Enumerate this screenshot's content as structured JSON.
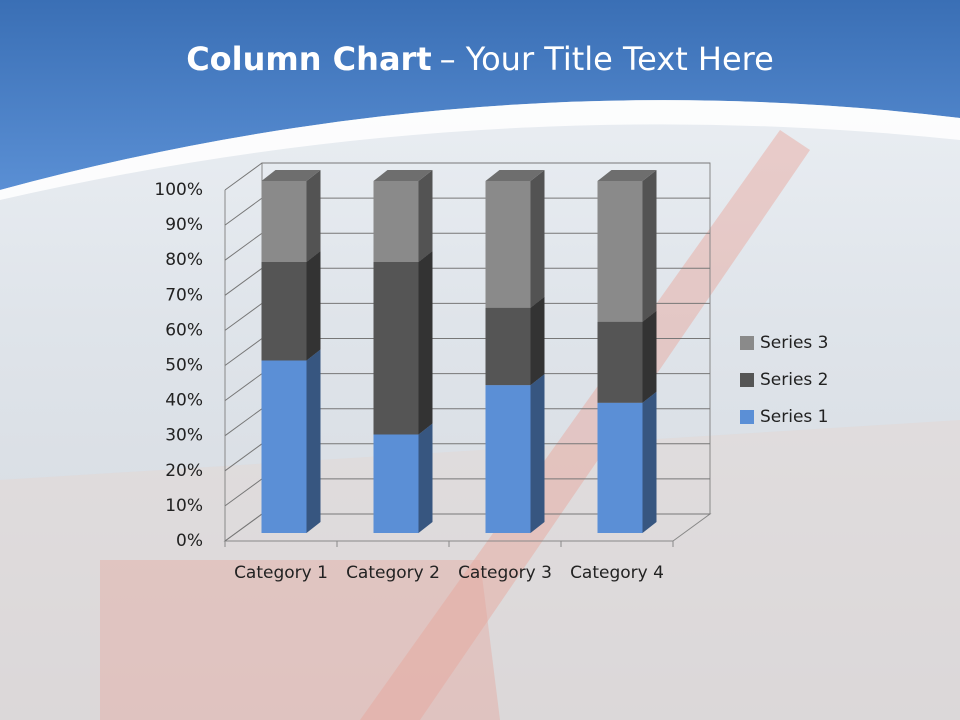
{
  "chart_data": {
    "type": "stacked_column_3d_percent",
    "title": {
      "bold": "Column Chart",
      "rest": "– Your Title Text Here"
    },
    "categories": [
      "Category 1",
      "Category 2",
      "Category 3",
      "Category 4"
    ],
    "series": [
      {
        "name": "Series 1",
        "color": "#5b8fd6",
        "values": [
          49,
          28,
          42,
          37
        ]
      },
      {
        "name": "Series 2",
        "color": "#555555",
        "values": [
          28,
          49,
          22,
          23
        ]
      },
      {
        "name": "Series 3",
        "color": "#8a8a8a",
        "values": [
          23,
          23,
          36,
          40
        ]
      }
    ],
    "ylim": [
      0,
      100
    ],
    "yticks": [
      {
        "value": 0,
        "label": "0%"
      },
      {
        "value": 10,
        "label": "10%"
      },
      {
        "value": 20,
        "label": "20%"
      },
      {
        "value": 30,
        "label": "30%"
      },
      {
        "value": 40,
        "label": "40%"
      },
      {
        "value": 50,
        "label": "50%"
      },
      {
        "value": 60,
        "label": "60%"
      },
      {
        "value": 70,
        "label": "70%"
      },
      {
        "value": 80,
        "label": "80%"
      },
      {
        "value": 90,
        "label": "90%"
      },
      {
        "value": 100,
        "label": "100%"
      }
    ],
    "grid": true,
    "legend": "right"
  }
}
